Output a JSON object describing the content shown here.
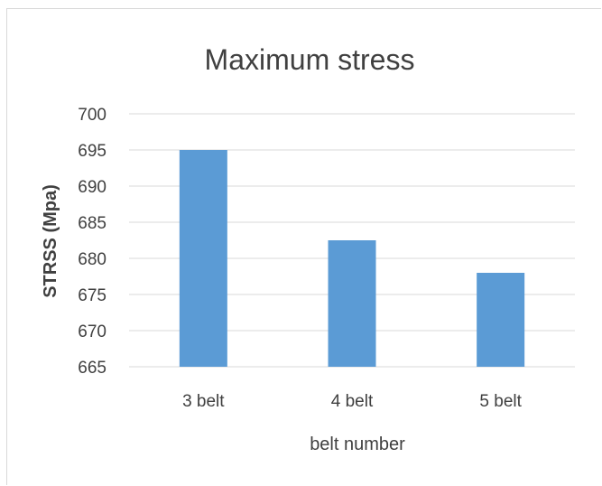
{
  "chart_data": {
    "type": "bar",
    "title": "Maximum stress",
    "xlabel": "belt number",
    "ylabel": "STRSS (Mpa)",
    "categories": [
      "3 belt",
      "4 belt",
      "5 belt"
    ],
    "values": [
      695,
      682.5,
      678
    ],
    "ylim": [
      665,
      700
    ],
    "yticks": [
      "665",
      "670",
      "675",
      "680",
      "685",
      "690",
      "695",
      "700"
    ],
    "grid": true,
    "legend": "none",
    "bar_color": "#5b9bd5",
    "grid_color": "#d9d9d9"
  }
}
